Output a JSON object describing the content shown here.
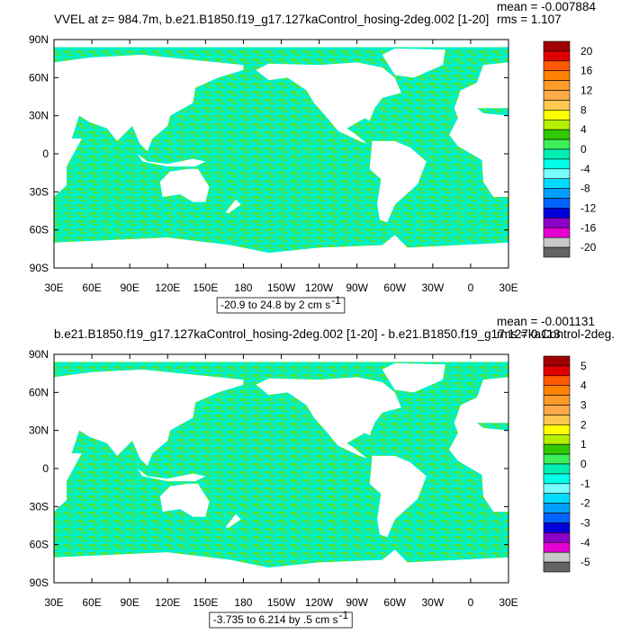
{
  "panels": [
    {
      "title": "VVEL at z= 984.7m, b.e21.B1850.f19_g17.127kaControl_hosing-2deg.002 [1-20]",
      "mean": "mean = -0.007884",
      "rms": "rms = 1.107",
      "range_text": "-20.9 to 24.8 by 2 cm s",
      "range_sup": "-1",
      "colorbar_labels": [
        "20",
        "16",
        "12",
        "8",
        "4",
        "0",
        "-4",
        "-8",
        "-12",
        "-16",
        "-20"
      ]
    },
    {
      "title": "b.e21.B1850.f19_g17.127kaControl_hosing-2deg.002 [1-20] - b.e21.B1850.f19_g17.127kaControl-2deg.",
      "mean": "mean = -0.001131",
      "rms": "rms = 0.113",
      "range_text": "-3.735 to 6.214 by .5 cm s",
      "range_sup": "-1",
      "colorbar_labels": [
        "5",
        "4",
        "3",
        "2",
        "1",
        "0",
        "-1",
        "-2",
        "-3",
        "-4",
        "-5"
      ]
    }
  ],
  "lat_labels": [
    "90N",
    "60N",
    "30N",
    "0",
    "30S",
    "60S",
    "90S"
  ],
  "lon_labels": [
    "30E",
    "60E",
    "90E",
    "120E",
    "150E",
    "180",
    "150W",
    "120W",
    "90W",
    "60W",
    "30W",
    "0",
    "30E"
  ],
  "colorbar_colors": [
    "#a00000",
    "#e10000",
    "#ff5a00",
    "#ff8200",
    "#ff9b28",
    "#ffaa46",
    "#ffc850",
    "#ffff00",
    "#b4f000",
    "#32c800",
    "#3cf05a",
    "#00f0b4",
    "#00ffe6",
    "#78ffff",
    "#00dcff",
    "#00a0ff",
    "#0064ff",
    "#0000dc",
    "#8c00c8",
    "#e600d2",
    "#c8c8c8",
    "#646464"
  ],
  "ocean_colors": [
    "#00f0c8",
    "#46e646"
  ]
}
